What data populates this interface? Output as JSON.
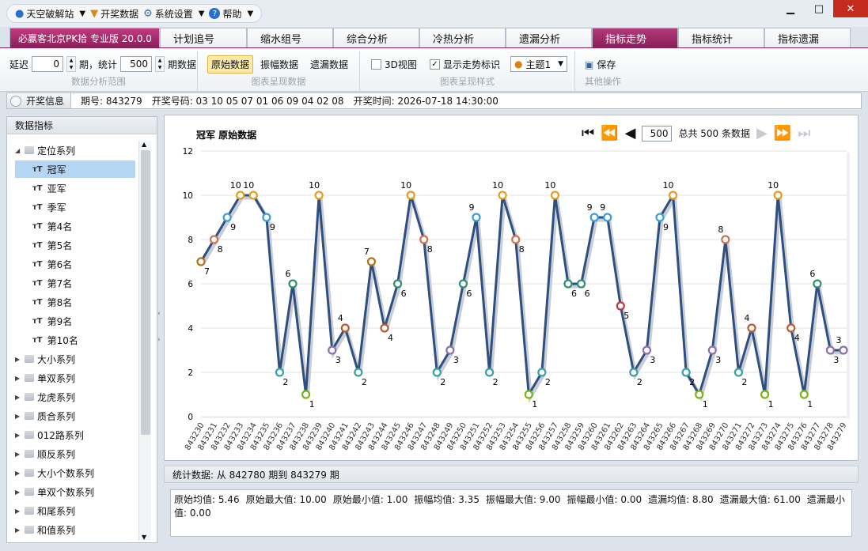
{
  "menu": {
    "site": "天空破解站",
    "lottery": "开奖数据",
    "settings": "系统设置",
    "help": "帮助"
  },
  "window": {
    "minimize": "▁",
    "maximize": "□",
    "close": "✕"
  },
  "tabs": [
    {
      "label": "必赢客北京PK拾 专业版 20.0.0"
    },
    {
      "label": "计划追号"
    },
    {
      "label": "缩水组号"
    },
    {
      "label": "综合分析"
    },
    {
      "label": "冷热分析"
    },
    {
      "label": "遗漏分析"
    },
    {
      "label": "指标走势"
    },
    {
      "label": "指标统计"
    },
    {
      "label": "指标遗漏"
    }
  ],
  "ribbon": {
    "delay_label": "延迟",
    "delay_value": "0",
    "period_unit": "期，统计",
    "count_value": "500",
    "count_unit": "期数据",
    "group1": "数据分析范围",
    "btn_raw": "原始数据",
    "btn_amp": "振幅数据",
    "btn_miss": "遗漏数据",
    "group2": "图表呈现数据",
    "chk_3d": "3D视图",
    "chk_trend": "显示走势标识",
    "theme": "主题1",
    "group3": "图表呈现样式",
    "save": "保存",
    "group4": "其他操作"
  },
  "infobar": {
    "btn": "开奖信息",
    "period": "期号: 843279",
    "numbers": "开奖号码: 03 10 05 07 01 06 09 04 02 08",
    "time": "开奖时间: 2026-07-18 14:30:00"
  },
  "leftpanel": {
    "title": "数据指标",
    "root": "定位系列",
    "children": [
      "冠军",
      "亚军",
      "季军",
      "第4名",
      "第5名",
      "第6名",
      "第7名",
      "第8名",
      "第9名",
      "第10名"
    ],
    "groups": [
      "大小系列",
      "单双系列",
      "龙虎系列",
      "质合系列",
      "012路系列",
      "顺反系列",
      "大小个数系列",
      "单双个数系列",
      "和尾系列",
      "和值系列"
    ]
  },
  "pager": {
    "page": "500",
    "total": "总共 500 条数据"
  },
  "chart_data": {
    "type": "line",
    "title": "冠军 原始数据",
    "x": [
      "843230",
      "843231",
      "843232",
      "843233",
      "843234",
      "843235",
      "843236",
      "843237",
      "843238",
      "843239",
      "843240",
      "843241",
      "843242",
      "843243",
      "843244",
      "843245",
      "843246",
      "843247",
      "843248",
      "843249",
      "843250",
      "843251",
      "843252",
      "843253",
      "843254",
      "843255",
      "843256",
      "843257",
      "843258",
      "843259",
      "843260",
      "843261",
      "843262",
      "843263",
      "843264",
      "843265",
      "843266",
      "843267",
      "843268",
      "843269",
      "843270",
      "843271",
      "843272",
      "843273",
      "843274",
      "843275",
      "843276",
      "843277",
      "843278",
      "843279"
    ],
    "values": [
      7,
      8,
      9,
      10,
      10,
      9,
      2,
      6,
      1,
      10,
      3,
      4,
      2,
      7,
      4,
      6,
      10,
      8,
      2,
      3,
      6,
      9,
      2,
      10,
      8,
      1,
      2,
      10,
      6,
      6,
      9,
      9,
      5,
      2,
      3,
      9,
      10,
      2,
      1,
      3,
      8,
      2,
      4,
      1,
      10,
      4,
      1,
      6,
      3,
      3
    ],
    "ylim": [
      0,
      12
    ],
    "yticks": [
      0,
      2,
      4,
      6,
      8,
      10,
      12
    ],
    "line_color": "#2f4f7f",
    "marker_colors": {
      "1": "#7ab317",
      "2": "#3a9fa8",
      "3": "#8a70b0",
      "4": "#c05a2a",
      "5": "#c03a3a",
      "6": "#2f8f6f",
      "7": "#b8701a",
      "8": "#d07050",
      "9": "#3aa0d0",
      "10": "#e0a020"
    },
    "grid": true
  },
  "stats": {
    "title": "统计数据: 从 842780 期到 843279 期",
    "items": [
      "原始均值: 5.46",
      "原始最大值: 10.00",
      "原始最小值: 1.00",
      "振幅均值: 3.35",
      "振幅最大值: 9.00",
      "振幅最小值: 0.00",
      "遗漏均值: 8.80",
      "遗漏最大值: 61.00",
      "遗漏最小值: 0.00"
    ]
  }
}
